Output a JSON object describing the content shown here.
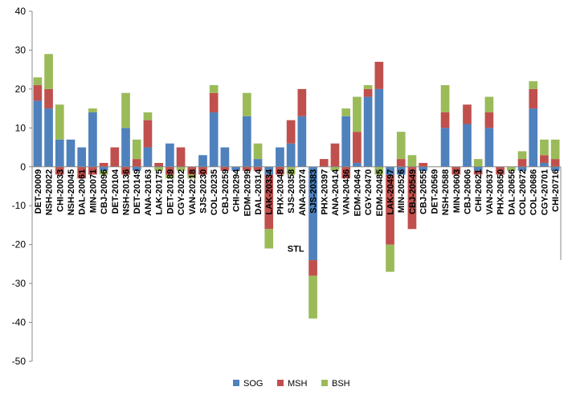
{
  "chart_data": {
    "type": "bar",
    "stacked": true,
    "categories": [
      "DET-20009",
      "NSH-20022",
      "CHI-20033",
      "NSH-20045",
      "DAL-20061",
      "MIN-20071",
      "CBJ-20096",
      "DET-20104",
      "NSH-20136",
      "DET-20149",
      "ANA-20163",
      "LAK-20175",
      "DET-20189",
      "CGY-20202",
      "VAN-20218",
      "SJS-20230",
      "COL-20235",
      "CBJ-20259",
      "CHI-20294",
      "EDM-20299",
      "DAL-20314",
      "LAK-20334",
      "PHX-20348",
      "SJS-20358",
      "ANA-20374",
      "SJS-20383",
      "PHX-20397",
      "ANA-20414",
      "VAN-20436",
      "EDM-20464",
      "CGY-20470",
      "EDM-20485",
      "LAK-20497",
      "MIN-20526",
      "CBJ-20549",
      "CBJ-20555",
      "DET-20569",
      "NSH-20588",
      "MIN-20603",
      "CBJ-20606",
      "CHI-20621",
      "VAN-20637",
      "PHX-20650",
      "DAL-20656",
      "COL-20672",
      "COL-20686",
      "CGY-20701",
      "CHI-20716"
    ],
    "series": [
      {
        "name": "SOG",
        "color": "#4F81BD",
        "values": [
          17,
          15,
          7,
          7,
          5,
          14,
          -1,
          0,
          10,
          -1,
          5,
          0,
          6,
          0,
          0,
          3,
          14,
          5,
          -1,
          13,
          2,
          -2,
          5,
          6,
          13,
          -24,
          0,
          0,
          13,
          1,
          18,
          20,
          -2,
          -2,
          0,
          -1,
          0,
          10,
          0,
          11,
          -1,
          10,
          0,
          0,
          -1,
          15,
          1,
          -1
        ]
      },
      {
        "name": "MSH",
        "color": "#C0504D",
        "values": [
          4,
          5,
          -2,
          0,
          -3,
          -2,
          1,
          5,
          -2,
          2,
          7,
          1,
          -2,
          5,
          -2,
          -2,
          5,
          -1,
          0,
          -1,
          -1,
          -14,
          -2,
          6,
          7,
          -4,
          2,
          6,
          -3,
          8,
          2,
          7,
          -18,
          2,
          -16,
          1,
          0,
          4,
          -2,
          5,
          -1,
          4,
          -2,
          0,
          2,
          5,
          2,
          2
        ]
      },
      {
        "name": "BSH",
        "color": "#9BBB59",
        "values": [
          2,
          9,
          9,
          0,
          0,
          1,
          -1,
          0,
          9,
          5,
          2,
          -1,
          -1,
          -1,
          -1,
          0,
          2,
          0,
          0,
          6,
          4,
          -5,
          0,
          -2,
          0,
          -11,
          0,
          -1,
          2,
          9,
          1,
          -2,
          -7,
          7,
          3,
          0,
          0,
          7,
          0,
          0,
          2,
          4,
          0,
          -1,
          2,
          2,
          4,
          5
        ]
      }
    ],
    "annotations": [
      {
        "text": "STL",
        "x": "SJS-20383",
        "y": -21
      }
    ],
    "ylim": [
      -50,
      40
    ],
    "yticks": [
      -50,
      -40,
      -30,
      -20,
      -10,
      0,
      10,
      20,
      30,
      40
    ],
    "grid": false,
    "legend_position": "bottom"
  }
}
